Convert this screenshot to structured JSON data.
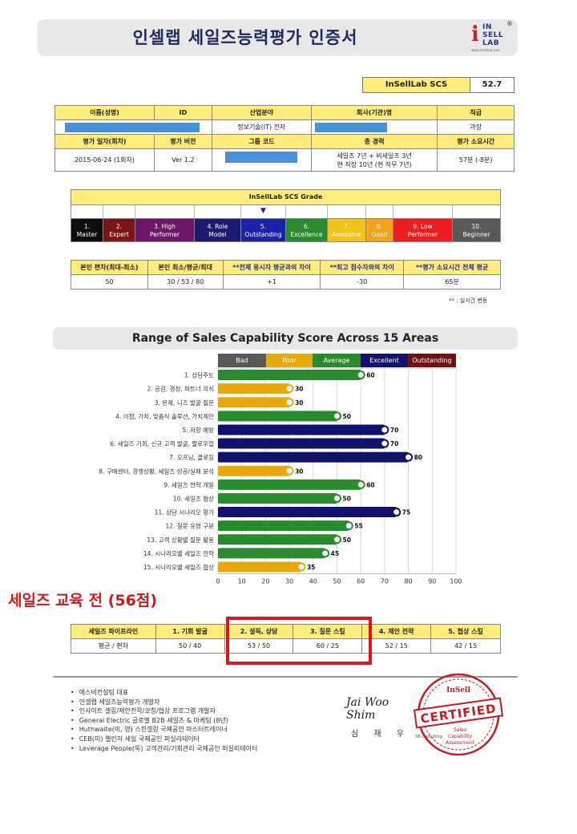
{
  "header": {
    "title": "인셀랩 세일즈능력평가 인증서",
    "logo": {
      "line1": "IN",
      "line2": "SELL",
      "line3": "LAB",
      "mark": "®",
      "url": "www.insellab.com"
    }
  },
  "scs": {
    "label": "InSellLab SCS",
    "value": "52.7"
  },
  "info": {
    "headers1": [
      "이름(성명)",
      "ID",
      "산업분야",
      "회사(기관)명",
      "직급"
    ],
    "row1": {
      "industry": "정보기술(IT) 전자",
      "position": "과장"
    },
    "headers2": [
      "평가 일자(회차)",
      "평가 버전",
      "그룹 코드",
      "총 경력",
      "평가 소요시간"
    ],
    "row2": {
      "date": "2015-06-24 (1회차)",
      "version": "Ver 1.2",
      "career_line1": "세일즈 7년 + 비세일즈 3년",
      "career_line2": "현 직장 10년 (현 직무 7년)",
      "time": "57분 (-8분)"
    }
  },
  "grade": {
    "title": "InSellLab SCS Grade",
    "marker": "▼",
    "marker_index": 4,
    "levels": [
      {
        "num": "1.",
        "name": "Master",
        "color": "#0d0d0d"
      },
      {
        "num": "2.",
        "name": "Expert",
        "color": "#7a1416"
      },
      {
        "num": "3. High",
        "name": "Performer",
        "color": "#6b1766"
      },
      {
        "num": "4. Role",
        "name": "Model",
        "color": "#1b1a6e"
      },
      {
        "num": "5.",
        "name": "Outstanding",
        "color": "#1b22a8"
      },
      {
        "num": "6.",
        "name": "Excellence",
        "color": "#2a8a2e"
      },
      {
        "num": "7.",
        "name": "Awesome",
        "color": "#f2c318"
      },
      {
        "num": "8.",
        "name": "Good",
        "color": "#f4a21d"
      },
      {
        "num": "9. Low",
        "name": "Performer",
        "color": "#ee1c1c"
      },
      {
        "num": "10.",
        "name": "Beginner",
        "color": "#595959"
      }
    ]
  },
  "stats": {
    "headers": [
      "본인 편차(최대-최소)",
      "본인 최소/평균/최대",
      "**전체 응시자 평균과의 차이",
      "**최고 점수자와의 차이",
      "**평가 소요시간 전체 평균"
    ],
    "values": [
      "50",
      "30 / 53 / 80",
      "+1",
      "-30",
      "65분"
    ],
    "note": "** : 실시간 변동"
  },
  "chart_title": "Range of Sales Capability Score Across 15 Areas",
  "legend": [
    {
      "label": "Bad",
      "color": "#595959"
    },
    {
      "label": "Poor",
      "color": "#e8a90f"
    },
    {
      "label": "Average",
      "color": "#2a8a2e"
    },
    {
      "label": "Excellent",
      "color": "#12126e"
    },
    {
      "label": "Outstanding",
      "color": "#6e1212"
    }
  ],
  "chart_data": {
    "type": "bar",
    "orientation": "horizontal",
    "categories": [
      "1. 상담주도",
      "2. 공감, 경청, 파트너 의식",
      "3. 문제, 니즈 발굴 질문",
      "4. 이점, 가치, 맞춤식 솔루션, 가치제안",
      "5. 저항 예방",
      "6. 세일즈 기회, 신규 고객 발굴, 팔로우업",
      "7. 오프닝, 클로징",
      "8. 구매센터, 경쟁상황, 세일즈 성공/실패 분석",
      "9. 세일즈 전략 개발",
      "10. 세일즈 협상",
      "11. 상담 시나리오 평가",
      "12. 질문 유형 구분",
      "13. 고객 상황별 질문 활용",
      "14. 시나리오별 세일즈 전략",
      "15. 시나리오별 세일즈 협상"
    ],
    "values": [
      60,
      30,
      30,
      50,
      70,
      70,
      80,
      30,
      60,
      50,
      75,
      55,
      50,
      45,
      35
    ],
    "xticks": [
      0,
      10,
      20,
      30,
      40,
      50,
      60,
      70,
      80,
      90,
      100
    ],
    "xlim": [
      0,
      100
    ]
  },
  "before_label": "세일즈 교육 전 (56점)",
  "pipeline": {
    "headers": [
      "세일즈 파이프라인",
      "1. 기회 발굴",
      "2. 설득, 상담",
      "3. 질문 스킬",
      "4. 제안 전략",
      "5. 협상 스킬"
    ],
    "values": [
      "평균 / 편차",
      "50 / 40",
      "53 / 50",
      "60 / 25",
      "52 / 15",
      "42 / 15"
    ]
  },
  "bio": [
    "에스비컨설팅 대표",
    "인셀랩 세일즈능력평가 개발자",
    "인사이트 셀링/제안전략/코칭/협상 프로그램 개발자",
    "General Electric 글로벌 B2B 세일즈 & 마케팅 (8년)",
    "Huthwaite(미, 영) 스핀셀링 국제공인 마스터트레이너",
    "CEB(미) 챌린저 세일 국제공인 퍼실리테이터",
    "Leverage People(독) 고객관리/기회관리 국제공인 퍼실리테이터"
  ],
  "signature": {
    "script": "Jai Woo Shim",
    "name": "심 재 우",
    "small": "SB consulting"
  },
  "seal": {
    "top": "InSell",
    "main": "CERTIFIED",
    "sub1": "Sales",
    "sub2": "Capability",
    "sub3": "Assessment"
  }
}
